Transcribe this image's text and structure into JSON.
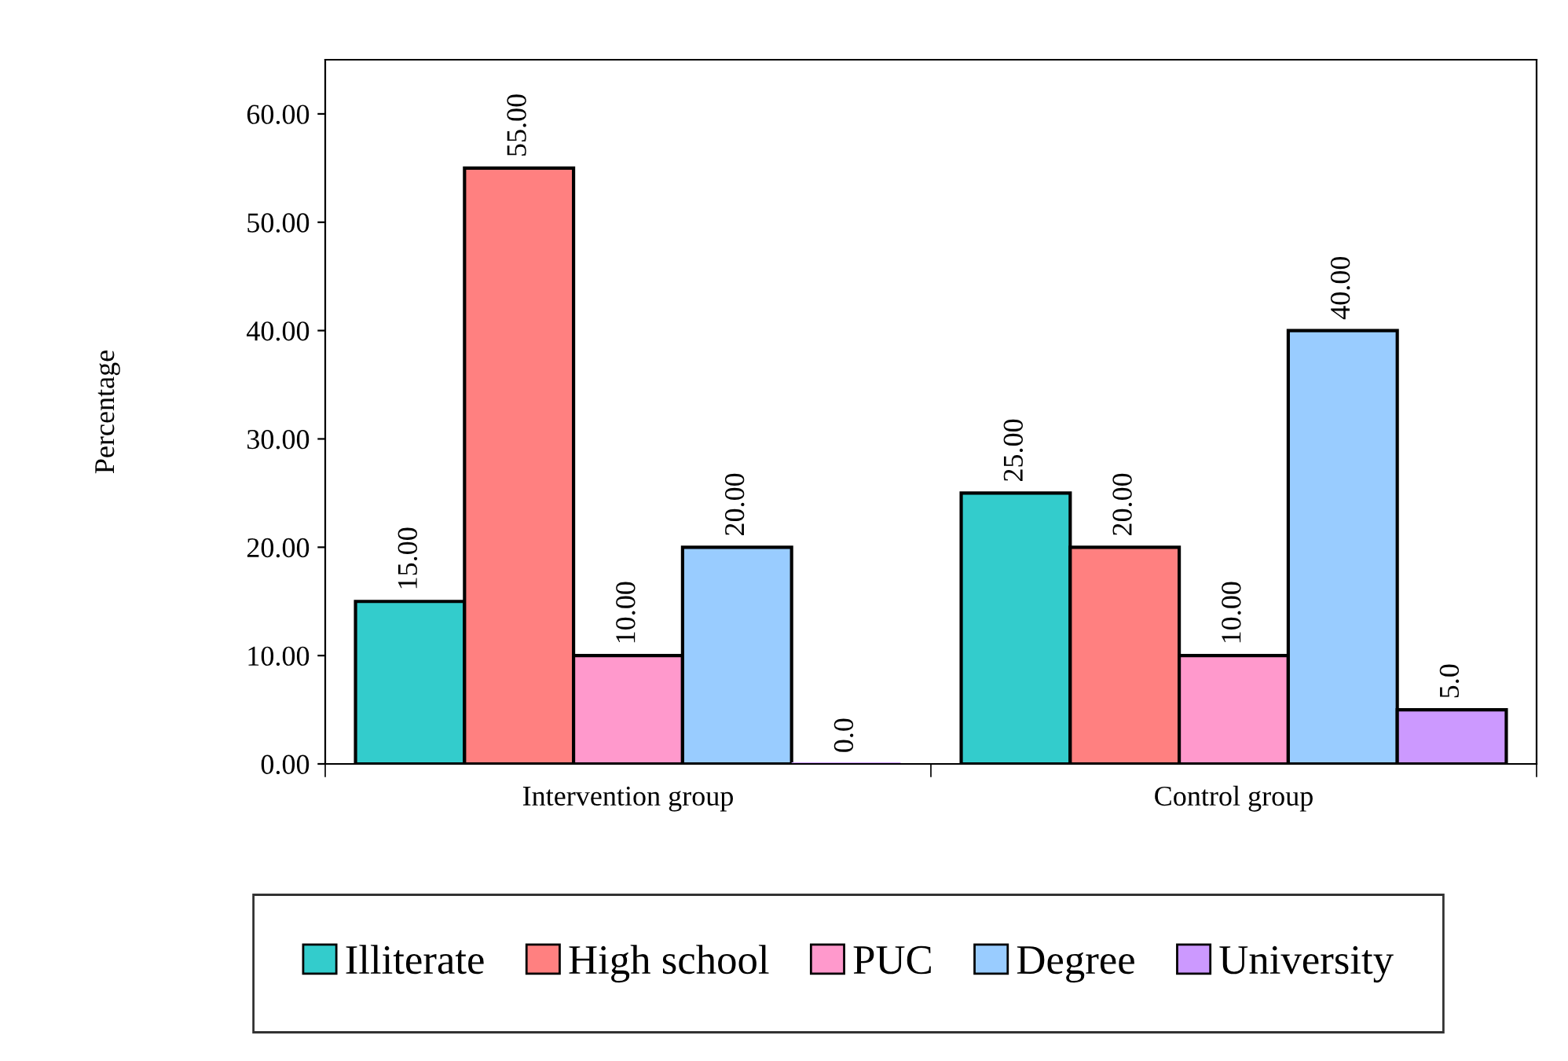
{
  "chart_data": {
    "type": "bar",
    "ylabel": "Percentage",
    "categories": [
      "Intervention group",
      "Control group"
    ],
    "series": [
      {
        "name": "Illiterate",
        "color": "#33cccc",
        "values": [
          15,
          25
        ],
        "value_labels": [
          "15.00",
          "25.00"
        ]
      },
      {
        "name": "High school",
        "color": "#ff8080",
        "values": [
          55,
          20
        ],
        "value_labels": [
          "55.00",
          "20.00"
        ]
      },
      {
        "name": "PUC",
        "color": "#ff99cc",
        "values": [
          10,
          10
        ],
        "value_labels": [
          "10.00",
          "10.00"
        ]
      },
      {
        "name": "Degree",
        "color": "#99ccff",
        "values": [
          20,
          40
        ],
        "value_labels": [
          "20.00",
          "40.00"
        ]
      },
      {
        "name": "University",
        "color": "#cc99ff",
        "values": [
          0,
          5
        ],
        "value_labels": [
          "0.0",
          "5.0"
        ]
      }
    ],
    "ylim": [
      0,
      65
    ],
    "yticks": [
      {
        "value": 0,
        "label": "0.00"
      },
      {
        "value": 10,
        "label": "10.00"
      },
      {
        "value": 20,
        "label": "20.00"
      },
      {
        "value": 30,
        "label": "30.00"
      },
      {
        "value": 40,
        "label": "40.00"
      },
      {
        "value": 50,
        "label": "50.00"
      },
      {
        "value": 60,
        "label": "60.00"
      }
    ],
    "grid": false,
    "legend": "bottom"
  }
}
